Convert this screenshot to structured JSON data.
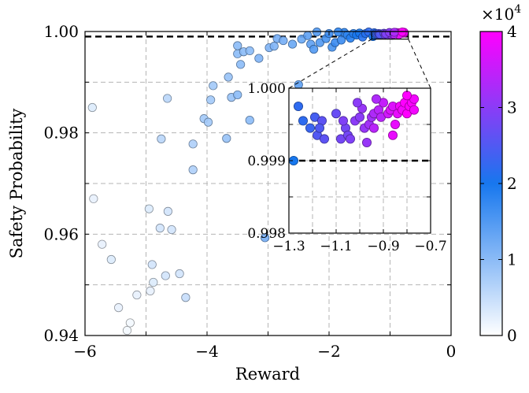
{
  "chart_data": {
    "type": "scatter",
    "xlabel": "Reward",
    "ylabel": "Safety Probability",
    "xlim": [
      -6,
      0
    ],
    "ylim": [
      0.94,
      1.0
    ],
    "x_ticks": [
      "−6",
      "−4",
      "−2",
      "0"
    ],
    "y_ticks": [
      "0.94",
      "0.96",
      "0.98",
      "1.00"
    ],
    "grid": true,
    "reference_line": {
      "y": 0.999,
      "style": "dashed",
      "color": "#000000"
    },
    "colorbar": {
      "range": [
        0,
        4
      ],
      "ticks": [
        "0",
        "1",
        "2",
        "3",
        "4"
      ],
      "multiplier": "×10",
      "exponent": "4",
      "colors": [
        "#ffffff",
        "#1777ee",
        "#ff00ff"
      ]
    },
    "inset": {
      "xlim": [
        -1.3,
        -0.7
      ],
      "ylim": [
        0.998,
        1.0
      ],
      "x_ticks": [
        "−1.3",
        "−1.1",
        "−0.9",
        "−0.7"
      ],
      "y_ticks": [
        "0.998",
        "0.999",
        "1.000"
      ],
      "zoom_region": {
        "x": [
          -1.3,
          -0.7
        ],
        "y": [
          0.9985,
          1.0
        ]
      }
    },
    "series": [
      {
        "points": [
          {
            "x": -5.88,
            "y": 0.985,
            "c": 0.3
          },
          {
            "x": -5.86,
            "y": 0.967,
            "c": 0.2
          },
          {
            "x": -5.72,
            "y": 0.958,
            "c": 0.2
          },
          {
            "x": -5.57,
            "y": 0.955,
            "c": 0.3
          },
          {
            "x": -5.45,
            "y": 0.9455,
            "c": 0.2
          },
          {
            "x": -5.26,
            "y": 0.9425,
            "c": 0.1
          },
          {
            "x": -5.31,
            "y": 0.941,
            "c": 0.1
          },
          {
            "x": -5.15,
            "y": 0.948,
            "c": 0.2
          },
          {
            "x": -4.95,
            "y": 0.965,
            "c": 0.3
          },
          {
            "x": -4.93,
            "y": 0.9488,
            "c": 0.2
          },
          {
            "x": -4.88,
            "y": 0.9505,
            "c": 0.3
          },
          {
            "x": -4.9,
            "y": 0.954,
            "c": 0.4
          },
          {
            "x": -4.77,
            "y": 0.9612,
            "c": 0.4
          },
          {
            "x": -4.64,
            "y": 0.9645,
            "c": 0.4
          },
          {
            "x": -4.58,
            "y": 0.9609,
            "c": 0.4
          },
          {
            "x": -4.68,
            "y": 0.9518,
            "c": 0.4
          },
          {
            "x": -4.45,
            "y": 0.9522,
            "c": 0.4
          },
          {
            "x": -4.35,
            "y": 0.9475,
            "c": 0.5
          },
          {
            "x": -4.65,
            "y": 0.9868,
            "c": 0.6
          },
          {
            "x": -4.75,
            "y": 0.9788,
            "c": 0.6
          },
          {
            "x": -4.23,
            "y": 0.9778,
            "c": 0.7
          },
          {
            "x": -4.23,
            "y": 0.9727,
            "c": 0.7
          },
          {
            "x": -4.05,
            "y": 0.9828,
            "c": 0.8
          },
          {
            "x": -3.98,
            "y": 0.9821,
            "c": 0.8
          },
          {
            "x": -3.94,
            "y": 0.9865,
            "c": 0.8
          },
          {
            "x": -3.9,
            "y": 0.9893,
            "c": 0.8
          },
          {
            "x": -3.65,
            "y": 0.991,
            "c": 0.9
          },
          {
            "x": -3.6,
            "y": 0.987,
            "c": 0.9
          },
          {
            "x": -3.68,
            "y": 0.9789,
            "c": 0.9
          },
          {
            "x": -3.5,
            "y": 0.9875,
            "c": 1.0
          },
          {
            "x": -3.45,
            "y": 0.9935,
            "c": 1.0
          },
          {
            "x": -3.5,
            "y": 0.9956,
            "c": 1.0
          },
          {
            "x": -3.5,
            "y": 0.9972,
            "c": 1.0
          },
          {
            "x": -3.4,
            "y": 0.996,
            "c": 1.0
          },
          {
            "x": -3.3,
            "y": 0.9962,
            "c": 1.0
          },
          {
            "x": -3.3,
            "y": 0.9825,
            "c": 1.0
          },
          {
            "x": -3.15,
            "y": 0.9947,
            "c": 1.1
          },
          {
            "x": -2.98,
            "y": 0.9968,
            "c": 1.1
          },
          {
            "x": -2.9,
            "y": 0.9971,
            "c": 1.1
          },
          {
            "x": -2.85,
            "y": 0.9986,
            "c": 1.2
          },
          {
            "x": -2.75,
            "y": 0.9982,
            "c": 1.2
          },
          {
            "x": -2.6,
            "y": 0.9975,
            "c": 1.3
          },
          {
            "x": -2.45,
            "y": 0.9985,
            "c": 1.3
          },
          {
            "x": -2.35,
            "y": 0.9992,
            "c": 1.4
          },
          {
            "x": -2.3,
            "y": 0.9975,
            "c": 1.4
          },
          {
            "x": -2.25,
            "y": 0.9965,
            "c": 1.5
          },
          {
            "x": -2.15,
            "y": 0.9978,
            "c": 1.5
          },
          {
            "x": -2.05,
            "y": 0.9986,
            "c": 1.6
          },
          {
            "x": -1.95,
            "y": 0.9969,
            "c": 1.6
          },
          {
            "x": -1.9,
            "y": 0.9978,
            "c": 1.7
          },
          {
            "x": -1.8,
            "y": 0.9983,
            "c": 1.7
          },
          {
            "x": -1.75,
            "y": 0.9998,
            "c": 1.8
          },
          {
            "x": -1.7,
            "y": 0.9993,
            "c": 1.8
          },
          {
            "x": -1.65,
            "y": 0.9987,
            "c": 1.9
          },
          {
            "x": -1.6,
            "y": 0.9996,
            "c": 1.9
          },
          {
            "x": -1.55,
            "y": 0.9993,
            "c": 2.0
          },
          {
            "x": -1.5,
            "y": 0.9997,
            "c": 2.0
          },
          {
            "x": -1.45,
            "y": 0.9989,
            "c": 2.1
          },
          {
            "x": -1.4,
            "y": 0.9996,
            "c": 2.1
          },
          {
            "x": -1.35,
            "y": 0.9999,
            "c": 2.2
          },
          {
            "x": -1.85,
            "y": 0.9999,
            "c": 1.8
          },
          {
            "x": -2.2,
            "y": 0.9999,
            "c": 1.5
          },
          {
            "x": -2.0,
            "y": 0.9996,
            "c": 1.7
          },
          {
            "x": -3.05,
            "y": 0.9593,
            "c": 1.2
          },
          {
            "x": -2.5,
            "y": 0.9895,
            "c": 1.4
          }
        ]
      },
      {
        "name": "inset",
        "points": [
          {
            "x": -1.28,
            "y": 0.999,
            "c": 2.0
          },
          {
            "x": -1.26,
            "y": 0.99975,
            "c": 2.2
          },
          {
            "x": -1.24,
            "y": 0.99955,
            "c": 2.2
          },
          {
            "x": -1.21,
            "y": 0.99945,
            "c": 2.3
          },
          {
            "x": -1.19,
            "y": 0.9996,
            "c": 2.4
          },
          {
            "x": -1.18,
            "y": 0.99935,
            "c": 2.5
          },
          {
            "x": -1.16,
            "y": 0.99955,
            "c": 2.6
          },
          {
            "x": -1.15,
            "y": 0.9993,
            "c": 2.6
          },
          {
            "x": -1.17,
            "y": 0.99945,
            "c": 2.5
          },
          {
            "x": -1.1,
            "y": 0.99965,
            "c": 2.7
          },
          {
            "x": -1.08,
            "y": 0.9993,
            "c": 2.8
          },
          {
            "x": -1.06,
            "y": 0.99945,
            "c": 2.8
          },
          {
            "x": -1.05,
            "y": 0.99935,
            "c": 2.8
          },
          {
            "x": -1.04,
            "y": 0.9993,
            "c": 2.9
          },
          {
            "x": -1.02,
            "y": 0.99955,
            "c": 3.0
          },
          {
            "x": -1.0,
            "y": 0.9996,
            "c": 3.0
          },
          {
            "x": -0.99,
            "y": 0.99972,
            "c": 3.1
          },
          {
            "x": -0.98,
            "y": 0.99945,
            "c": 3.1
          },
          {
            "x": -0.97,
            "y": 0.99925,
            "c": 3.1
          },
          {
            "x": -0.96,
            "y": 0.9995,
            "c": 3.2
          },
          {
            "x": -0.95,
            "y": 0.9996,
            "c": 3.2
          },
          {
            "x": -0.94,
            "y": 0.99965,
            "c": 3.3
          },
          {
            "x": -0.92,
            "y": 0.9997,
            "c": 3.4
          },
          {
            "x": -0.91,
            "y": 0.9996,
            "c": 3.4
          },
          {
            "x": -0.9,
            "y": 0.9998,
            "c": 3.5
          },
          {
            "x": -0.88,
            "y": 0.99965,
            "c": 3.6
          },
          {
            "x": -0.87,
            "y": 0.9997,
            "c": 3.7
          },
          {
            "x": -0.86,
            "y": 0.99975,
            "c": 3.7
          },
          {
            "x": -0.85,
            "y": 0.9995,
            "c": 3.8
          },
          {
            "x": -0.84,
            "y": 0.99965,
            "c": 3.8
          },
          {
            "x": -0.83,
            "y": 0.99975,
            "c": 3.9
          },
          {
            "x": -0.82,
            "y": 0.9997,
            "c": 3.9
          },
          {
            "x": -0.81,
            "y": 0.9998,
            "c": 4.0
          },
          {
            "x": -0.8,
            "y": 0.99965,
            "c": 4.0
          },
          {
            "x": -0.79,
            "y": 0.99975,
            "c": 4.0
          },
          {
            "x": -0.78,
            "y": 0.9998,
            "c": 4.0
          },
          {
            "x": -0.77,
            "y": 0.9997,
            "c": 3.9
          },
          {
            "x": -0.77,
            "y": 0.99985,
            "c": 3.9
          },
          {
            "x": -0.86,
            "y": 0.99935,
            "c": 3.8
          },
          {
            "x": -0.94,
            "y": 0.99945,
            "c": 3.4
          },
          {
            "x": -1.07,
            "y": 0.99955,
            "c": 2.9
          },
          {
            "x": -1.01,
            "y": 0.9998,
            "c": 3.0
          },
          {
            "x": -0.93,
            "y": 0.99985,
            "c": 3.3
          },
          {
            "x": -0.8,
            "y": 0.9999,
            "c": 4.0
          }
        ]
      }
    ]
  }
}
